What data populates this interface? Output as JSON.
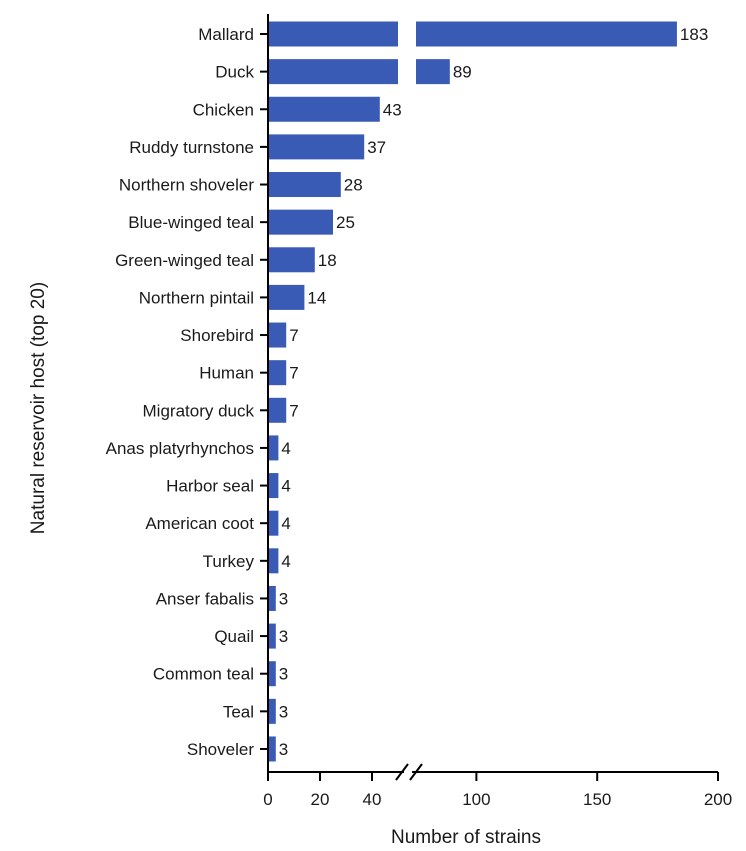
{
  "chart_data": {
    "type": "bar",
    "orientation": "horizontal",
    "categories": [
      "Mallard",
      "Duck",
      "Chicken",
      "Ruddy turnstone",
      "Northern shoveler",
      "Blue-winged teal",
      "Green-winged teal",
      "Northern pintail",
      "Shorebird",
      "Human",
      "Migratory duck",
      "Anas platyrhynchos",
      "Harbor seal",
      "American coot",
      "Turkey",
      "Anser fabalis",
      "Quail",
      "Common teal",
      "Teal",
      "Shoveler"
    ],
    "values": [
      183,
      89,
      43,
      37,
      28,
      25,
      18,
      14,
      7,
      7,
      7,
      4,
      4,
      4,
      4,
      3,
      3,
      3,
      3,
      3
    ],
    "value_labels": [
      "183",
      "89",
      "43",
      "37",
      "28",
      "25",
      "18",
      "14",
      "7",
      "7",
      "7",
      "4",
      "4",
      "4",
      "4",
      "3",
      "3",
      "3",
      "3",
      "3"
    ],
    "xlabel": "Number of strains",
    "ylabel": "Natural reservoir host (top 20)",
    "axis_break": [
      50,
      75
    ],
    "x_segments": [
      {
        "range": [
          0,
          50
        ],
        "ticks": [
          0,
          20,
          40
        ],
        "tick_labels": [
          "0",
          "20",
          "40"
        ]
      },
      {
        "range": [
          75,
          200
        ],
        "ticks": [
          100,
          150,
          200
        ],
        "tick_labels": [
          "100",
          "150",
          "200"
        ]
      }
    ],
    "bar_color": "#3a5bb5",
    "grid": false,
    "legend": "none"
  }
}
